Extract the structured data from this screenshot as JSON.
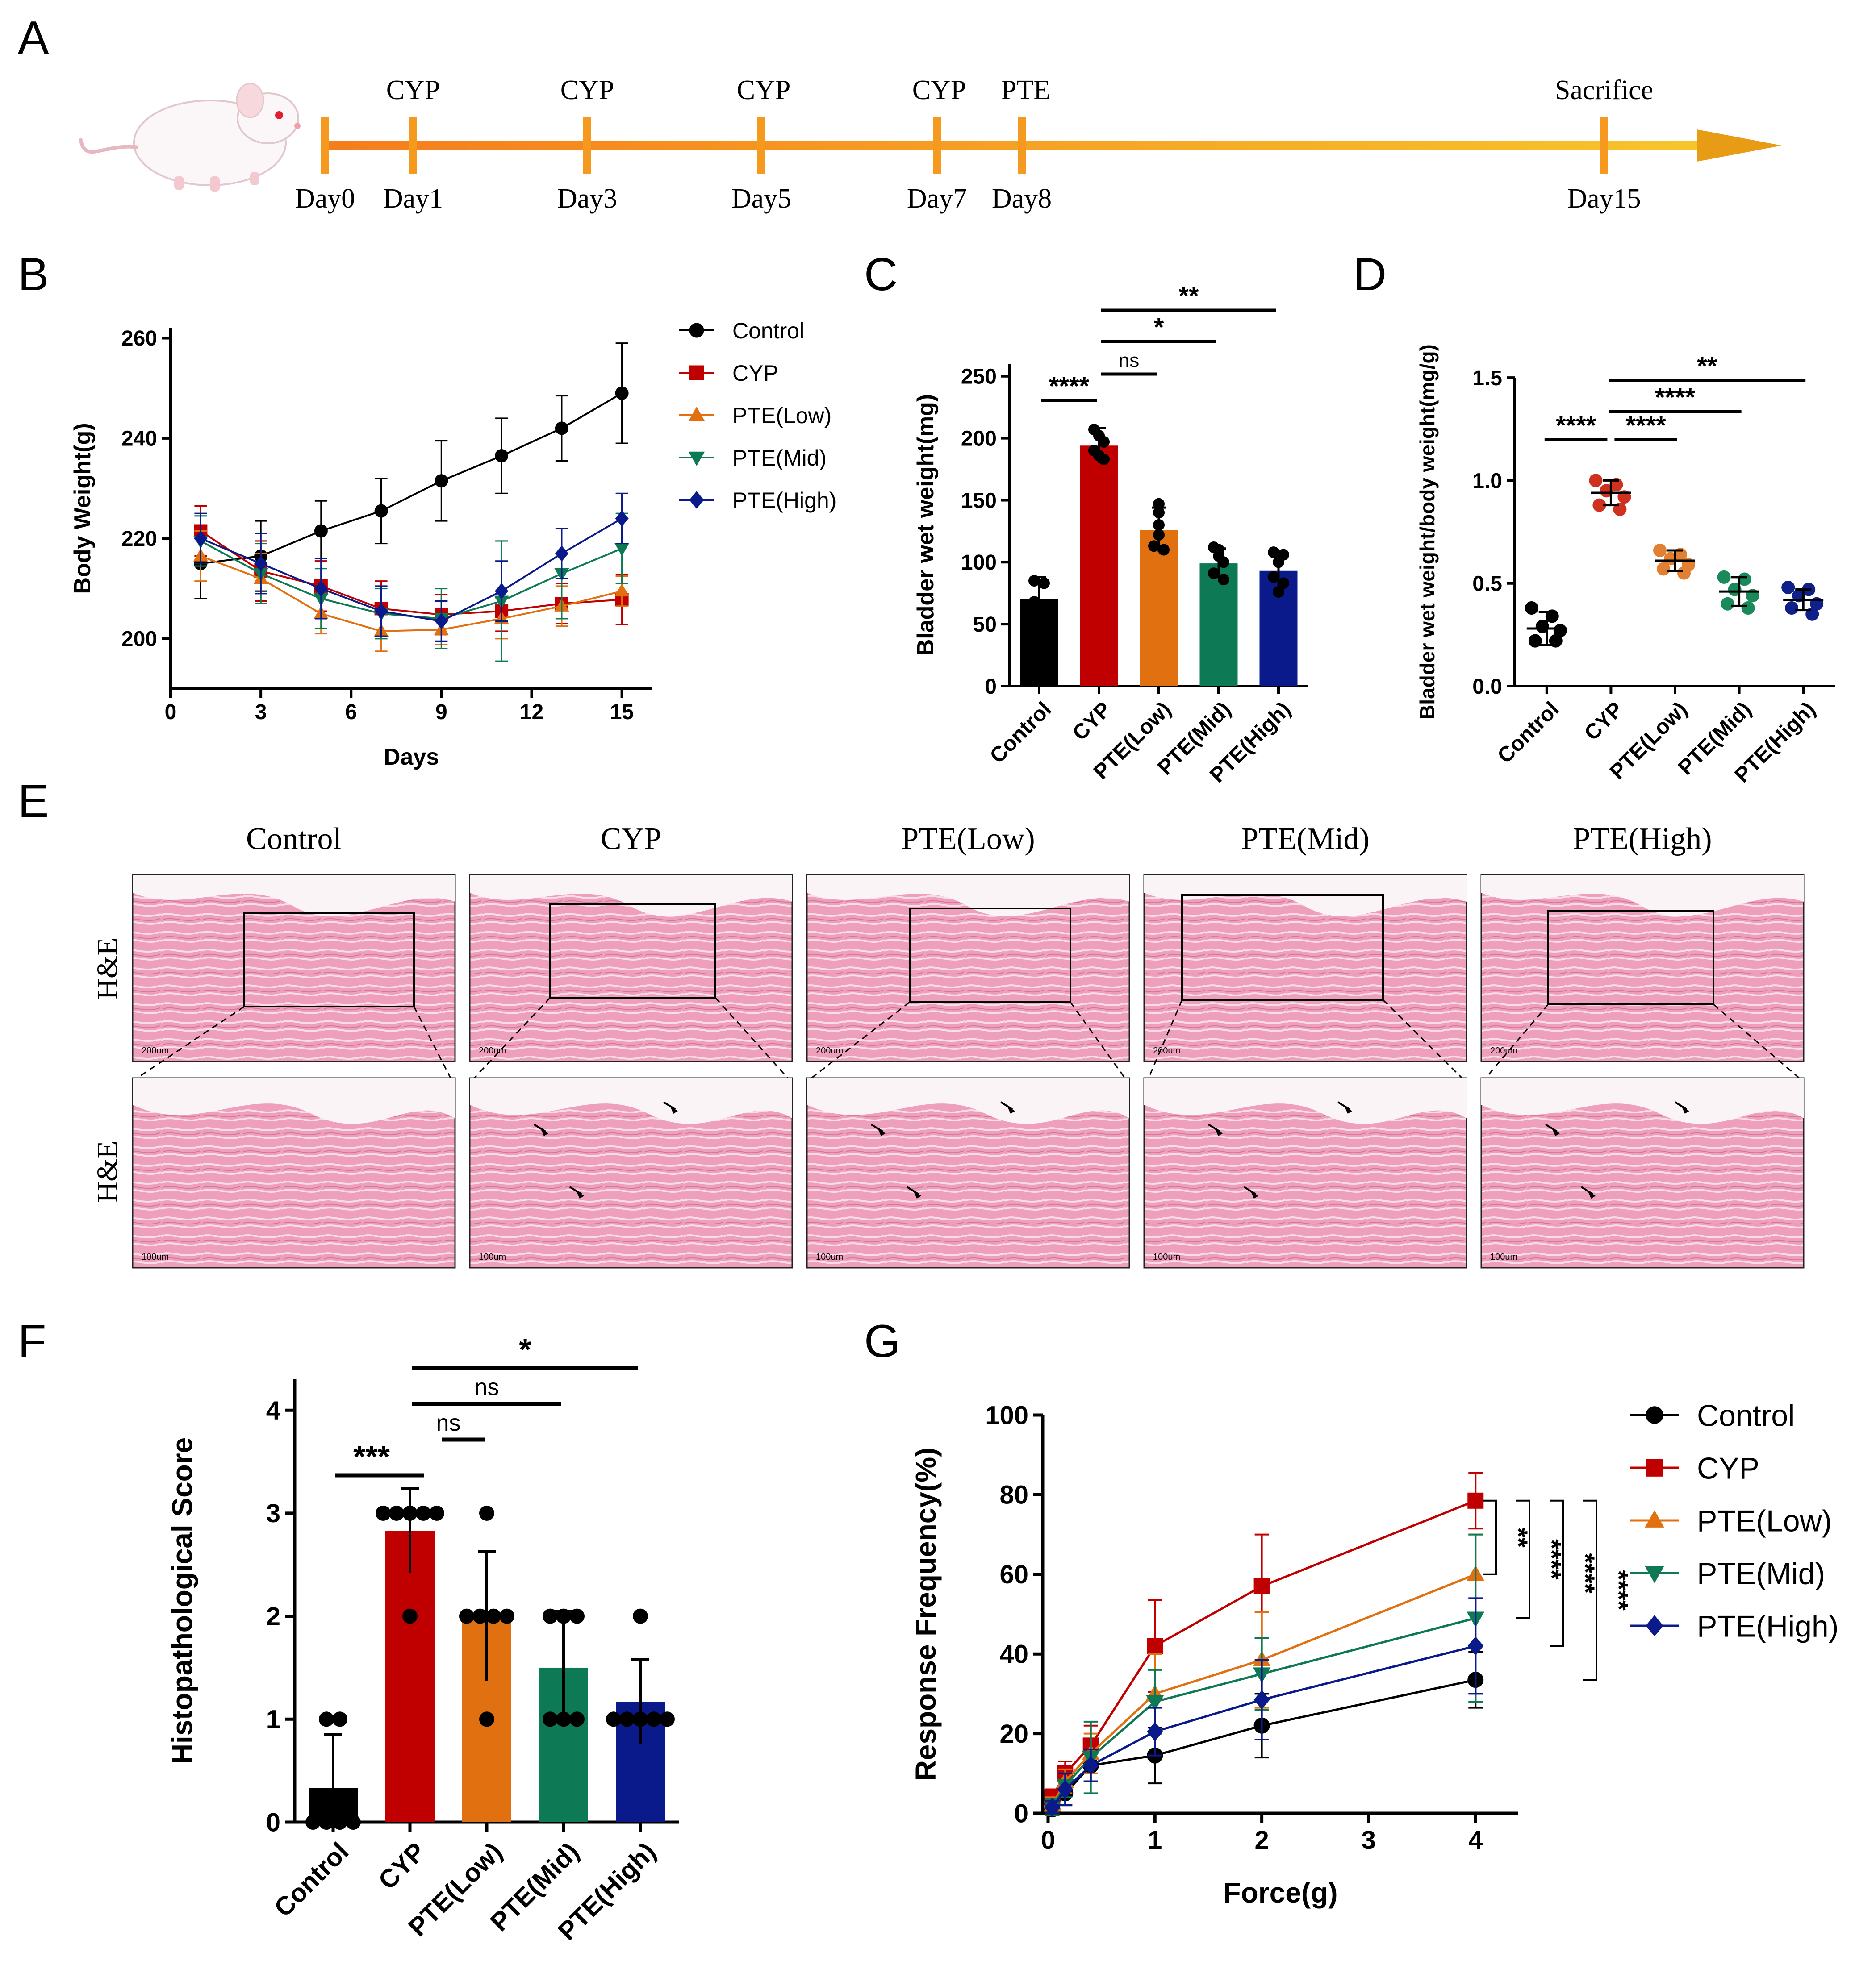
{
  "panel_labels": [
    "A",
    "B",
    "C",
    "D",
    "E",
    "F",
    "G"
  ],
  "colors": {
    "Control": "#000000",
    "CYP": "#c00000",
    "PTE(Low)": "#e07010",
    "PTE(Mid)": "#0e7a55",
    "PTE(High)": "#0a1a8a",
    "barC": [
      "#000000",
      "#c00000",
      "#e07010",
      "#0e7a55",
      "#0a1a8a"
    ],
    "dotD": [
      "#000000",
      "#d03020",
      "#e08030",
      "#1a8a5a",
      "#10208a"
    ],
    "timeline": "#f08c1c",
    "tissue": "#e28aa8"
  },
  "timeline": {
    "top_labels": [
      "CYP",
      "CYP",
      "CYP",
      "CYP",
      "PTE",
      "Sacrifice"
    ],
    "days": [
      "Day0",
      "Day1",
      "Day3",
      "Day5",
      "Day7",
      "Day8",
      "Day15"
    ]
  },
  "chart_data": [
    {
      "id": "B",
      "type": "line",
      "xlabel": "Days",
      "ylabel": "Body Weight(g)",
      "xlim": [
        0,
        16
      ],
      "ylim": [
        190,
        262
      ],
      "xticks": [
        0,
        3,
        6,
        9,
        12,
        15
      ],
      "yticks": [
        200,
        220,
        240,
        260
      ],
      "x": [
        1,
        3,
        5,
        7,
        9,
        11,
        13,
        15
      ],
      "series": [
        {
          "name": "Control",
          "marker": "circle",
          "values": [
            215,
            216.5,
            221.5,
            225.5,
            231.5,
            236.5,
            242,
            249
          ],
          "err": [
            7,
            7,
            6,
            6.5,
            8,
            7.5,
            6.5,
            10
          ]
        },
        {
          "name": "CYP",
          "marker": "square",
          "values": [
            221.5,
            213.5,
            210.5,
            206,
            204.8,
            205.5,
            207,
            207.8
          ],
          "err": [
            5,
            6,
            5,
            5.5,
            4,
            4,
            4,
            5
          ]
        },
        {
          "name": "PTE(Low)",
          "marker": "triangle",
          "values": [
            216.5,
            212,
            205,
            201.5,
            201.8,
            204,
            206.5,
            209.5
          ],
          "err": [
            5,
            5,
            4,
            4,
            3,
            4,
            4,
            3
          ]
        },
        {
          "name": "PTE(Mid)",
          "marker": "triangle-down",
          "values": [
            219.5,
            213,
            208,
            205,
            204,
            207.5,
            213,
            218
          ],
          "err": [
            5,
            6,
            6,
            5,
            6,
            12,
            9,
            7
          ]
        },
        {
          "name": "PTE(High)",
          "marker": "diamond",
          "values": [
            220,
            215,
            210,
            205.5,
            203.5,
            209.5,
            217,
            224
          ],
          "err": [
            5,
            6,
            6,
            5,
            4,
            6,
            5,
            5
          ]
        }
      ]
    },
    {
      "id": "C",
      "type": "bar",
      "ylabel": "Bladder wet weight(mg)",
      "categories": [
        "Control",
        "CYP",
        "PTE(Low)",
        "PTE(Mid)",
        "PTE(High)"
      ],
      "values": [
        70,
        194,
        126,
        99,
        93
      ],
      "err": [
        18,
        14,
        18,
        12,
        13
      ],
      "points": [
        [
          85,
          83,
          68,
          65,
          62,
          60
        ],
        [
          207,
          202,
          197,
          190,
          186,
          183
        ],
        [
          147,
          140,
          130,
          122,
          113,
          110
        ],
        [
          112,
          110,
          105,
          100,
          91,
          86
        ],
        [
          108,
          106,
          100,
          88,
          83,
          76
        ]
      ],
      "ylim": [
        0,
        260
      ],
      "yticks": [
        0,
        50,
        100,
        150,
        200,
        250
      ],
      "significance": [
        {
          "from": 0,
          "to": 1,
          "label": "****"
        },
        {
          "from": 1,
          "to": 2,
          "label": "ns"
        },
        {
          "from": 1,
          "to": 3,
          "label": "*"
        },
        {
          "from": 1,
          "to": 4,
          "label": "**"
        }
      ]
    },
    {
      "id": "D",
      "type": "scatter",
      "ylabel": "Bladder wet weight/body weight(mg/g)",
      "categories": [
        "Control",
        "CYP",
        "PTE(Low)",
        "PTE(Mid)",
        "PTE(High)"
      ],
      "means": [
        0.28,
        0.94,
        0.61,
        0.46,
        0.42
      ],
      "err": [
        0.08,
        0.06,
        0.05,
        0.07,
        0.05
      ],
      "points": [
        [
          0.38,
          0.34,
          0.29,
          0.27,
          0.22,
          0.22
        ],
        [
          1.0,
          0.98,
          0.95,
          0.92,
          0.88,
          0.86
        ],
        [
          0.66,
          0.64,
          0.62,
          0.59,
          0.57,
          0.55
        ],
        [
          0.53,
          0.52,
          0.47,
          0.44,
          0.4,
          0.38
        ],
        [
          0.48,
          0.47,
          0.44,
          0.4,
          0.38,
          0.35
        ]
      ],
      "ylim": [
        0,
        1.6
      ],
      "yticks": [
        0.0,
        0.5,
        1.0,
        1.5
      ],
      "ytick_labels": [
        "0.0",
        "0.5",
        "1.0",
        "1.5"
      ],
      "significance": [
        {
          "from": 0,
          "to": 1,
          "label": "****"
        },
        {
          "from": 1,
          "to": 2,
          "label": "****"
        },
        {
          "from": 1,
          "to": 3,
          "label": "****"
        },
        {
          "from": 1,
          "to": 4,
          "label": "**"
        }
      ]
    },
    {
      "id": "F",
      "type": "bar",
      "ylabel": "Histopathological Score",
      "categories": [
        "Control",
        "CYP",
        "PTE(Low)",
        "PTE(Mid)",
        "PTE(High)"
      ],
      "values": [
        0.33,
        2.83,
        2.0,
        1.5,
        1.17
      ],
      "err": [
        0.52,
        0.41,
        0.63,
        0.55,
        0.41
      ],
      "points": [
        [
          1,
          1,
          0,
          0,
          0,
          0
        ],
        [
          3,
          3,
          3,
          3,
          3,
          2
        ],
        [
          3,
          2,
          2,
          2,
          2,
          1
        ],
        [
          2,
          2,
          2,
          1,
          1,
          1
        ],
        [
          2,
          1,
          1,
          1,
          1,
          1
        ]
      ],
      "ylim": [
        0,
        4.3
      ],
      "yticks": [
        0,
        1,
        2,
        3,
        4
      ],
      "significance": [
        {
          "from": 0,
          "to": 1,
          "label": "***"
        },
        {
          "from": 1,
          "to": 2,
          "label": "ns"
        },
        {
          "from": 1,
          "to": 3,
          "label": "ns"
        },
        {
          "from": 1,
          "to": 4,
          "label": "*"
        }
      ]
    },
    {
      "id": "G",
      "type": "line",
      "xlabel": "Force(g)",
      "ylabel": "Response Frequency(%)",
      "xlim": [
        -0.05,
        4.4
      ],
      "ylim": [
        0,
        100
      ],
      "xticks": [
        0,
        1,
        2,
        3,
        4
      ],
      "yticks": [
        0,
        20,
        40,
        60,
        80,
        100
      ],
      "x": [
        0.04,
        0.16,
        0.4,
        1,
        2,
        4
      ],
      "series": [
        {
          "name": "Control",
          "marker": "circle",
          "values": [
            1,
            5,
            12,
            14.5,
            22,
            33.5
          ],
          "err": [
            1,
            3,
            4,
            7,
            8,
            7
          ]
        },
        {
          "name": "CYP",
          "marker": "square",
          "values": [
            4,
            10,
            17,
            42,
            57,
            78.5
          ],
          "err": [
            2,
            3,
            5,
            11.5,
            13,
            7
          ]
        },
        {
          "name": "PTE(Low)",
          "marker": "triangle",
          "values": [
            2,
            8,
            15,
            30,
            38.5,
            60
          ],
          "err": [
            2,
            3,
            5,
            10,
            12,
            10
          ]
        },
        {
          "name": "PTE(Mid)",
          "marker": "triangle-down",
          "values": [
            1.5,
            7,
            14,
            28,
            35,
            49
          ],
          "err": [
            2,
            3,
            9,
            8,
            9,
            21
          ]
        },
        {
          "name": "PTE(High)",
          "marker": "diamond",
          "values": [
            1.5,
            6,
            12,
            20.5,
            28.5,
            42
          ],
          "err": [
            1.5,
            4,
            4,
            6,
            10,
            12
          ]
        }
      ],
      "significance": [
        {
          "label": "**"
        },
        {
          "label": "****"
        },
        {
          "label": "****"
        },
        {
          "label": "****"
        }
      ]
    }
  ],
  "histology": {
    "groups": [
      "Control",
      "CYP",
      "PTE(Low)",
      "PTE(Mid)",
      "PTE(High)"
    ],
    "row_labels": [
      "H&E",
      "H&E"
    ],
    "scale_labels": [
      "200um",
      "100um"
    ]
  }
}
